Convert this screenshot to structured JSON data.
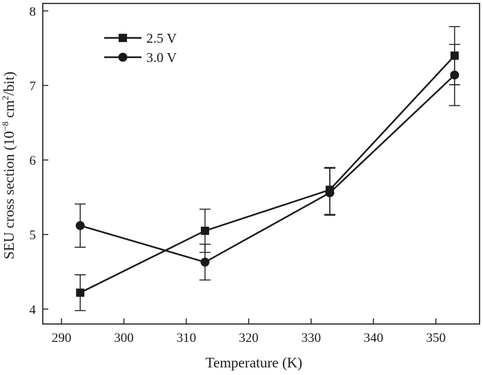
{
  "chart_data": {
    "type": "line",
    "title": "",
    "xlabel": "Temperature (K)",
    "ylabel_prefix": "SEU cross section (10",
    "ylabel_exp": "−8",
    "ylabel_mid": " cm",
    "ylabel_exp2": "2",
    "ylabel_suffix": "/bit)",
    "xlim": [
      287,
      357
    ],
    "ylim": [
      3.8,
      8.1
    ],
    "xticks": [
      290,
      300,
      310,
      320,
      330,
      340,
      350
    ],
    "yticks": [
      4,
      5,
      6,
      7,
      8
    ],
    "grid": false,
    "legend_position": "top-left",
    "series": [
      {
        "name": "2.5 V",
        "marker": "square",
        "color": "#1a1a1a",
        "x": [
          293,
          313,
          333,
          353
        ],
        "y": [
          4.22,
          5.05,
          5.6,
          7.4
        ],
        "err_low": [
          0.24,
          0.29,
          0.33,
          0.39
        ],
        "err_high": [
          0.24,
          0.29,
          0.3,
          0.39
        ]
      },
      {
        "name": "3.0 V",
        "marker": "circle",
        "color": "#1a1a1a",
        "x": [
          293,
          313,
          333,
          353
        ],
        "y": [
          5.12,
          4.63,
          5.56,
          7.14
        ],
        "err_low": [
          0.29,
          0.24,
          0.3,
          0.41
        ],
        "err_high": [
          0.29,
          0.24,
          0.33,
          0.41
        ]
      }
    ]
  }
}
